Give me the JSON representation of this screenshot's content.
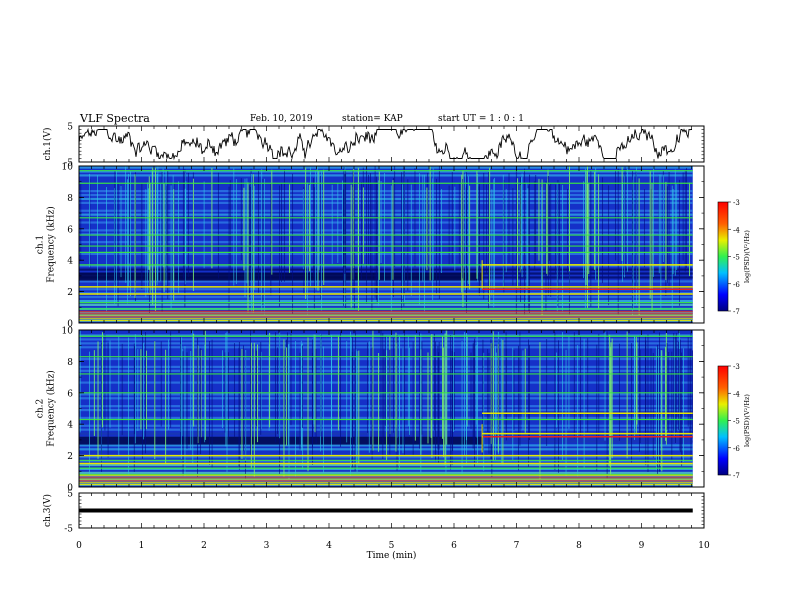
{
  "header": {
    "title": "VLF Spectra",
    "date": "Feb. 10, 2019",
    "station": "station= KAP",
    "start": "start  UT =  1 : 0  : 1"
  },
  "chart_data": [
    {
      "type": "line",
      "panel": "ch1-waveform",
      "ylabel": "ch.1(V)",
      "ylim": [
        -5,
        5
      ],
      "xlim": [
        0,
        10
      ],
      "yticks": [
        "5",
        "-5"
      ],
      "x_end": 9.82,
      "series": [
        {
          "values_description_omitted": true
        }
      ]
    },
    {
      "type": "heatmap",
      "panel": "ch1-spectrogram",
      "ylabel": "ch.1\nFrequency (kHz)",
      "ylim": [
        0,
        10
      ],
      "xlim": [
        0,
        10
      ],
      "yticks": [
        "0",
        "2",
        "4",
        "6",
        "8",
        "10"
      ],
      "x_end": 9.82,
      "transition_time": 6.45,
      "colorbar": {
        "label": "log(PSD)(V²/Hz)",
        "range": [
          -7,
          -3
        ],
        "ticks": [
          "-3",
          "-4",
          "-5",
          "-6",
          "-7"
        ]
      }
    },
    {
      "type": "heatmap",
      "panel": "ch2-spectrogram",
      "ylabel": "ch.2\nFrequency (kHz)",
      "ylim": [
        0,
        10
      ],
      "xlim": [
        0,
        10
      ],
      "yticks": [
        "0",
        "2",
        "4",
        "6",
        "8",
        "10"
      ],
      "x_end": 9.82,
      "transition_time": 6.45,
      "colorbar": {
        "label": "log(PSD)(V²/Hz)",
        "range": [
          -7,
          -3
        ],
        "ticks": [
          "-3",
          "-4",
          "-5",
          "-6",
          "-7"
        ]
      }
    },
    {
      "type": "line",
      "panel": "ch3-waveform",
      "ylabel": "ch.3(V)",
      "ylim": [
        -5,
        5
      ],
      "xlim": [
        0,
        10
      ],
      "yticks": [
        "5",
        "-5"
      ],
      "series": [
        {
          "name": "",
          "x": [
            0,
            9.82
          ],
          "values": [
            0,
            0
          ]
        }
      ]
    }
  ],
  "xaxis": {
    "label": "Time (min)",
    "ticks": [
      "0",
      "1",
      "2",
      "3",
      "4",
      "5",
      "6",
      "7",
      "8",
      "9",
      "10"
    ]
  },
  "colors": {
    "waveform": "#000000",
    "spectrogram_base": "#1530c8",
    "line_green": "#3cf03c",
    "line_yellow": "#e8e800",
    "line_red": "#e82020"
  }
}
